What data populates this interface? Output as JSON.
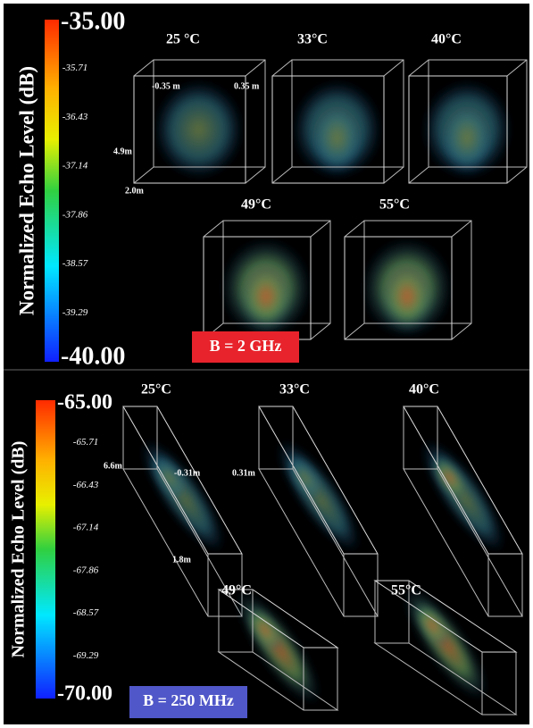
{
  "panels": [
    {
      "colorbar": {
        "label": "Normalized Echo Level (dB)",
        "ticks": [
          "-35.00",
          "-35.71",
          "-36.43",
          "-37.14",
          "-37.86",
          "-38.57",
          "-39.29",
          "-40.00"
        ]
      },
      "band": "B = 2 GHz",
      "plots": [
        {
          "label": "25 °C"
        },
        {
          "label": "33°C"
        },
        {
          "label": "40°C"
        },
        {
          "label": "49°C"
        },
        {
          "label": "55°C"
        }
      ],
      "dimensions": [
        "-0.35 m",
        "0.35 m",
        "4.9m",
        "2.0m"
      ]
    },
    {
      "colorbar": {
        "label": "Normalized Echo Level (dB)",
        "ticks": [
          "-65.00",
          "-65.71",
          "-66.43",
          "-67.14",
          "-67.86",
          "-68.57",
          "-69.29",
          "-70.00"
        ]
      },
      "band": "B = 250 MHz",
      "plots": [
        {
          "label": "25°C"
        },
        {
          "label": "33°C"
        },
        {
          "label": "40°C"
        },
        {
          "label": "49°C"
        },
        {
          "label": "55°C"
        }
      ],
      "dimensions": [
        "6.6m",
        "-0.31m",
        "0.31m",
        "1.8m"
      ]
    }
  ]
}
